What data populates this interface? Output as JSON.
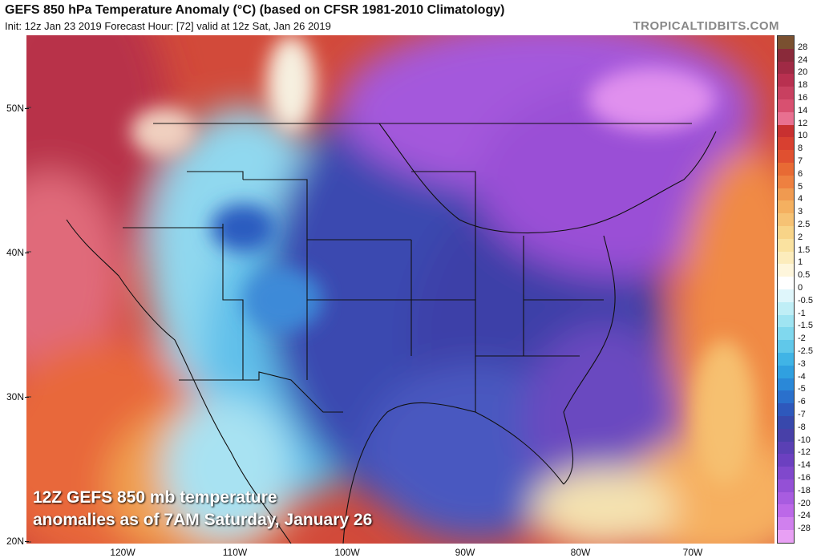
{
  "header": {
    "title": "GEFS 850 hPa Temperature Anomaly (°C) (based on CFSR 1981-2010 Climatology)",
    "subtitle": "Init: 12z Jan 23 2019   Forecast Hour: [72]   valid at 12z Sat, Jan 26 2019",
    "brand": "TROPICALTIDBITS.COM"
  },
  "caption": {
    "line1": "12Z GEFS 850 mb temperature",
    "line2": "anomalies as of 7AM Saturday, January 26"
  },
  "axes": {
    "lat_labels": [
      "50N",
      "40N",
      "30N",
      "20N"
    ],
    "lon_labels": [
      "120W",
      "110W",
      "100W",
      "90W",
      "80W",
      "70W"
    ]
  },
  "colorbar": {
    "labels": [
      "28",
      "24",
      "20",
      "18",
      "16",
      "14",
      "12",
      "10",
      "8",
      "7",
      "6",
      "5",
      "4",
      "3",
      "2.5",
      "2",
      "1.5",
      "1",
      "0.5",
      "0",
      "-0.5",
      "-1",
      "-1.5",
      "-2",
      "-2.5",
      "-3",
      "-4",
      "-5",
      "-6",
      "-7",
      "-8",
      "-10",
      "-12",
      "-14",
      "-16",
      "-18",
      "-20",
      "-24",
      "-28"
    ],
    "colors": [
      "#7a5030",
      "#8a2a3a",
      "#a02a45",
      "#b83050",
      "#c84060",
      "#d85070",
      "#e87090",
      "#c83030",
      "#d84030",
      "#e05030",
      "#e86a34",
      "#ee8040",
      "#f09a50",
      "#f4b060",
      "#f6c274",
      "#f8d488",
      "#faE2a0",
      "#fcecbc",
      "#fef6dc",
      "#ffffff",
      "#dff6fb",
      "#bfeef6",
      "#9fe4f2",
      "#80d8ee",
      "#60c8ea",
      "#40b4e6",
      "#30a0e0",
      "#2a88d8",
      "#2a70cc",
      "#2e58bc",
      "#3848ac",
      "#4840a8",
      "#5a40b4",
      "#6c40c0",
      "#8048cc",
      "#9450d6",
      "#a85ce0",
      "#bc68e8",
      "#d080ee",
      "#e8a0f4"
    ]
  }
}
